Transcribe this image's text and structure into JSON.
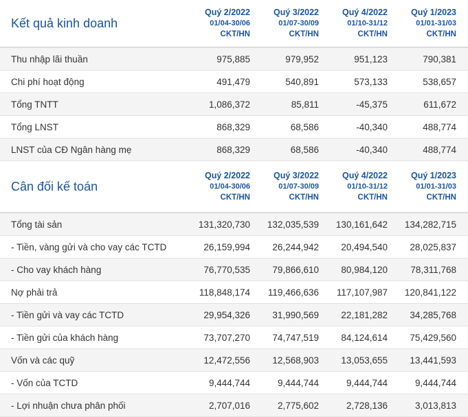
{
  "income": {
    "title": "Kết quả kinh doanh",
    "columns": [
      {
        "quarter": "Quý 2/2022",
        "dates": "01/04-30/06",
        "unit": "CKT/HN"
      },
      {
        "quarter": "Quý 3/2022",
        "dates": "01/07-30/09",
        "unit": "CKT/HN"
      },
      {
        "quarter": "Quý 4/2022",
        "dates": "01/10-31/12",
        "unit": "CKT/HN"
      },
      {
        "quarter": "Quý 1/2023",
        "dates": "01/01-31/03",
        "unit": "CKT/HN"
      }
    ],
    "rows": [
      {
        "label": "Thu nhập lãi thuần",
        "values": [
          "975,885",
          "979,952",
          "951,123",
          "790,381"
        ]
      },
      {
        "label": "Chi phí hoạt động",
        "values": [
          "491,479",
          "540,891",
          "573,133",
          "538,657"
        ]
      },
      {
        "label": "Tổng TNTT",
        "values": [
          "1,086,372",
          "85,811",
          "-45,375",
          "611,672"
        ]
      },
      {
        "label": "Tổng LNST",
        "values": [
          "868,329",
          "68,586",
          "-40,340",
          "488,774"
        ]
      },
      {
        "label": "LNST của CĐ Ngân hàng mẹ",
        "values": [
          "868,329",
          "68,586",
          "-40,340",
          "488,774"
        ]
      }
    ]
  },
  "balance": {
    "title": "Cân đối kế toán",
    "columns": [
      {
        "quarter": "Quý 2/2022",
        "dates": "01/04-30/06",
        "unit": "CKT/HN"
      },
      {
        "quarter": "Quý 3/2022",
        "dates": "01/07-30/09",
        "unit": "CKT/HN"
      },
      {
        "quarter": "Quý 4/2022",
        "dates": "01/10-31/12",
        "unit": "CKT/HN"
      },
      {
        "quarter": "Quý 1/2023",
        "dates": "01/01-31/03",
        "unit": "CKT/HN"
      }
    ],
    "rows": [
      {
        "label": "Tổng tài sản",
        "values": [
          "131,320,730",
          "132,035,539",
          "130,161,642",
          "134,282,715"
        ]
      },
      {
        "label": "- Tiền, vàng gửi và cho vay các TCTD",
        "values": [
          "26,159,994",
          "26,244,942",
          "20,494,540",
          "28,025,837"
        ]
      },
      {
        "label": "- Cho vay khách hàng",
        "values": [
          "76,770,535",
          "79,866,610",
          "80,984,120",
          "78,311,768"
        ]
      },
      {
        "label": "Nợ phải trả",
        "values": [
          "118,848,174",
          "119,466,636",
          "117,107,987",
          "120,841,122"
        ]
      },
      {
        "label": "- Tiền gửi và vay các TCTD",
        "values": [
          "29,954,326",
          "31,990,569",
          "22,181,282",
          "34,285,768"
        ]
      },
      {
        "label": "- Tiền gửi của khách hàng",
        "values": [
          "73,707,270",
          "74,747,519",
          "84,124,614",
          "75,429,560"
        ]
      },
      {
        "label": "Vốn và các quỹ",
        "values": [
          "12,472,556",
          "12,568,903",
          "13,053,655",
          "13,441,593"
        ]
      },
      {
        "label": "- Vốn của TCTD",
        "values": [
          "9,444,744",
          "9,444,744",
          "9,444,744",
          "9,444,744"
        ]
      },
      {
        "label": "- Lợi nhuận chưa phân phối",
        "values": [
          "2,707,016",
          "2,775,602",
          "2,728,136",
          "3,013,813"
        ]
      }
    ]
  }
}
